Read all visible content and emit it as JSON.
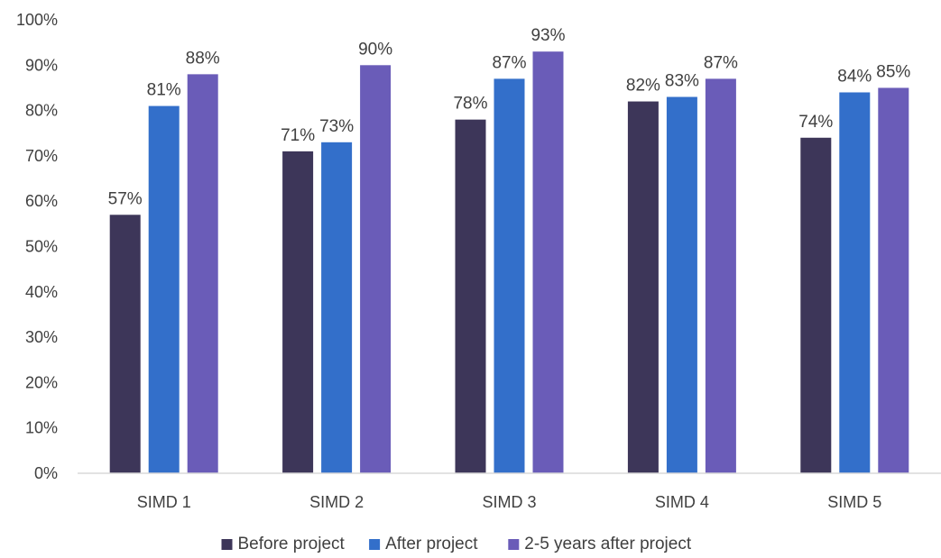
{
  "chart_data": {
    "type": "bar",
    "categories": [
      "SIMD 1",
      "SIMD 2",
      "SIMD 3",
      "SIMD 4",
      "SIMD 5"
    ],
    "series": [
      {
        "name": "Before project",
        "values": [
          57,
          71,
          78,
          82,
          74
        ],
        "color": "#3d3659"
      },
      {
        "name": "After project",
        "values": [
          81,
          73,
          87,
          83,
          84
        ],
        "color": "#336fca"
      },
      {
        "name": "2-5 years after project",
        "values": [
          88,
          90,
          93,
          87,
          85
        ],
        "color": "#6a5cb8"
      }
    ],
    "title": "",
    "xlabel": "",
    "ylabel": "",
    "ylim": [
      0,
      100
    ],
    "yticks": [
      "0%",
      "10%",
      "20%",
      "30%",
      "40%",
      "50%",
      "60%",
      "70%",
      "80%",
      "90%",
      "100%"
    ],
    "value_suffix": "%",
    "grid": false,
    "legend_position": "bottom"
  }
}
